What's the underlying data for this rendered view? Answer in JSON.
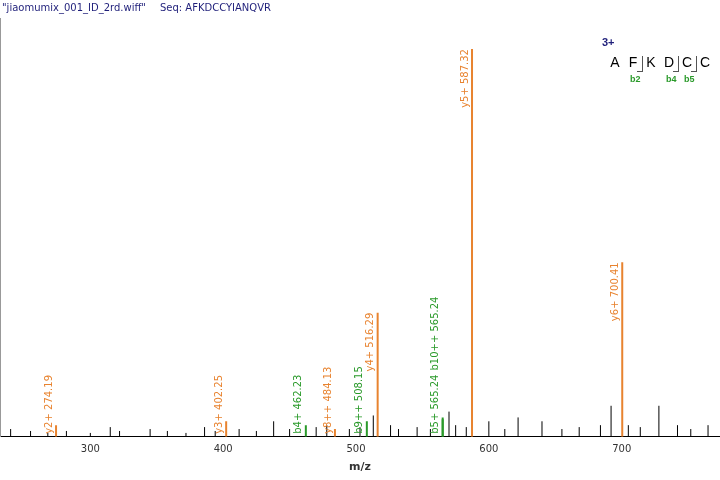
{
  "chart_data": {
    "type": "stem",
    "title": "\"jiaomumix_001_ID_2rd.wiff\"",
    "subtitle": "Seq: AFKDCCYIANQVR",
    "x_label": "m/z",
    "xlim": [
      232,
      774
    ],
    "xticks": [
      300,
      400,
      500,
      600,
      700
    ],
    "ylim": [
      0,
      108
    ],
    "yticks": [],
    "tick_labels": "x",
    "grid": false,
    "series": [
      {
        "color": "#e8832f",
        "x": [
          274.19,
          402.25,
          484.13,
          516.29,
          587.32,
          700.41
        ],
        "values": [
          3,
          4,
          2,
          32,
          100,
          45
        ],
        "labels": [
          "y2+ 274.19",
          "y3+ 402.25",
          "y8++ 484.13",
          "y4+ 516.29",
          "y5+ 587.32",
          "y6+ 700.41"
        ]
      },
      {
        "color": "#2a9a2a",
        "x": [
          462.23,
          508.15,
          565.24,
          565.24
        ],
        "values": [
          3,
          4,
          4.5,
          5
        ],
        "labels": [
          "b4+ 462.23",
          "b9++ 508.15",
          "b5+ 565.24",
          "b10++ 565.24"
        ]
      },
      {
        "color": "#000000",
        "x": [
          240,
          255,
          268,
          282,
          300,
          315,
          322,
          345,
          358,
          372,
          386,
          394,
          412,
          425,
          438,
          450,
          470,
          478,
          495,
          503,
          513,
          526,
          532,
          546,
          556,
          570,
          575,
          583,
          600,
          612,
          622,
          640,
          655,
          668,
          684,
          692,
          705,
          714,
          728,
          742,
          752,
          765
        ],
        "values": [
          2,
          1.5,
          1,
          1.5,
          1,
          2.5,
          1.5,
          2,
          1.5,
          1,
          2.5,
          1.5,
          2,
          1.5,
          4,
          2,
          2.5,
          3,
          2,
          2.5,
          5.5,
          3,
          2,
          2.5,
          2,
          6.5,
          3,
          2.5,
          4,
          2,
          5,
          4,
          2,
          2.5,
          3,
          8,
          3,
          2.5,
          8,
          3,
          2,
          3
        ]
      }
    ],
    "fragment_map": {
      "charge": "3+",
      "residues": [
        "A",
        "F",
        "K",
        "D",
        "C",
        "C"
      ],
      "b_labels": [
        "b2",
        "b4",
        "b5"
      ]
    }
  }
}
